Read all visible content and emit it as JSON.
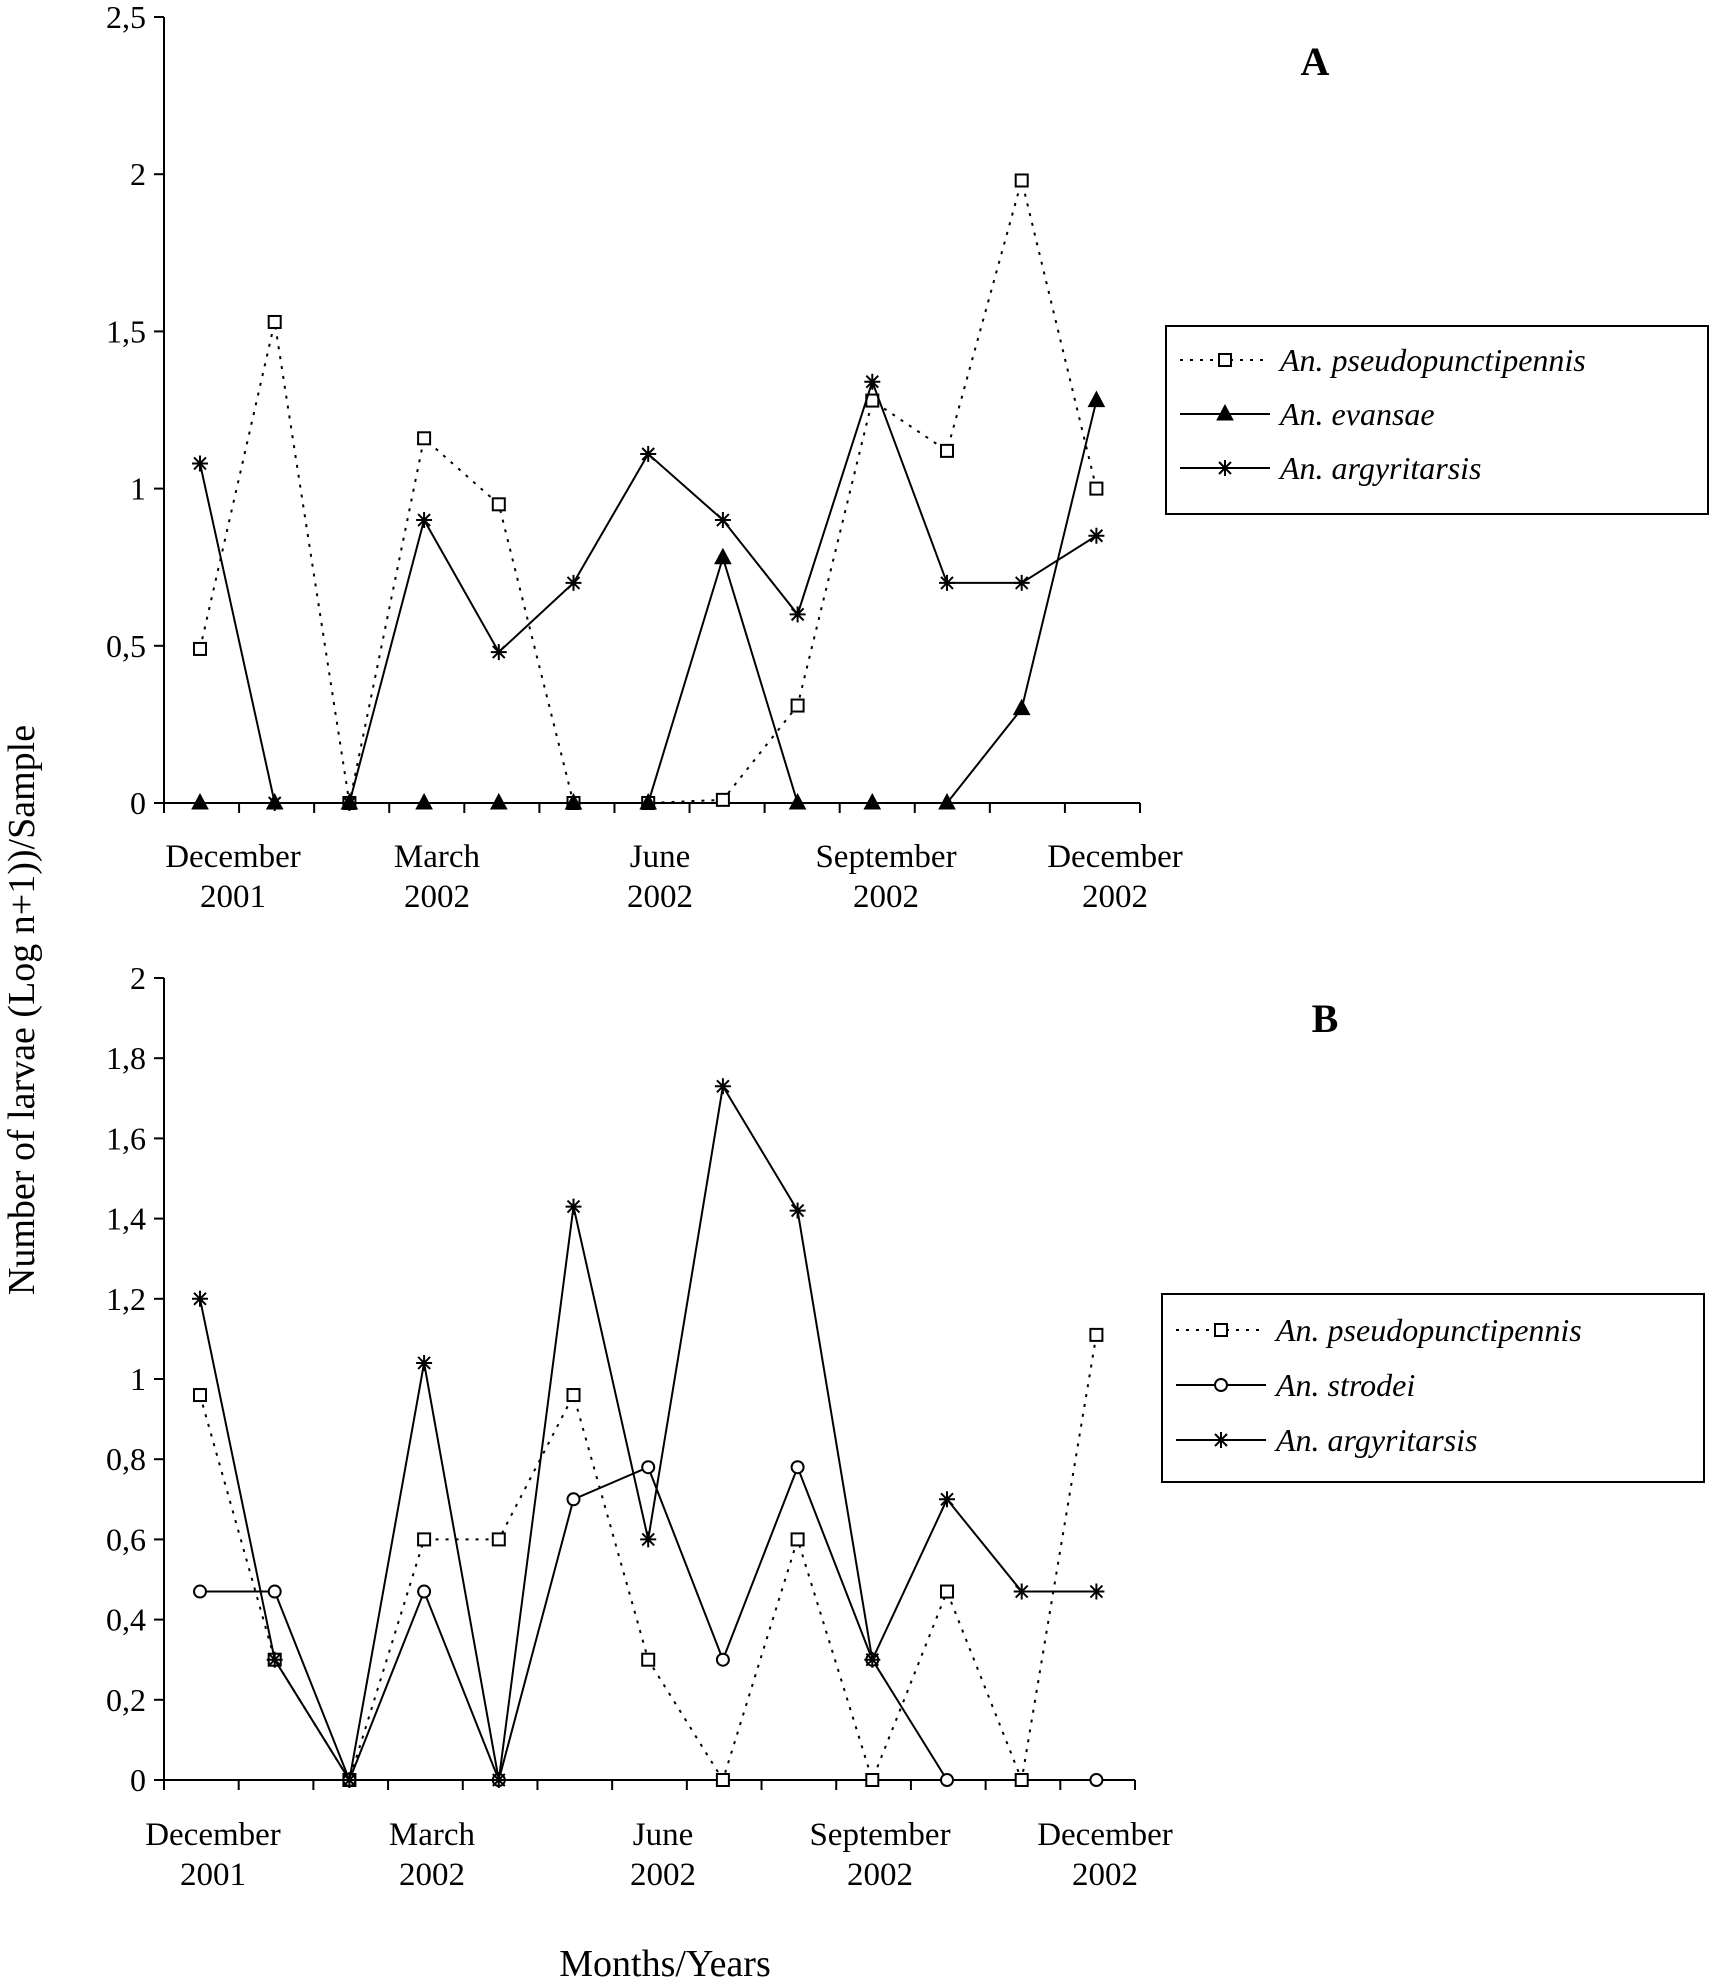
{
  "figure": {
    "ylabel": "Number of larvae  (Log n+1))/Sample",
    "xlabel": "Months/Years"
  },
  "chart_data": [
    {
      "type": "line",
      "panel": "A",
      "ylim": [
        0,
        2.5
      ],
      "yticks": [
        "0",
        "0,5",
        "1",
        "1,5",
        "2",
        "2,5"
      ],
      "ytick_values": [
        0,
        0.5,
        1,
        1.5,
        2,
        2.5
      ],
      "month_labels": [
        {
          "month": "December",
          "year": "2001"
        },
        {
          "month": "March",
          "year": "2002"
        },
        {
          "month": "June",
          "year": "2002"
        },
        {
          "month": "September",
          "year": "2002"
        },
        {
          "month": "December",
          "year": "2002"
        }
      ],
      "x": [
        1,
        2,
        3,
        4,
        5,
        6,
        7,
        8,
        9,
        10,
        11,
        12,
        13
      ],
      "legend_position": "right",
      "series": [
        {
          "name": "An. pseudopunctipennis",
          "style": "dotted",
          "marker": "square",
          "values": [
            0.49,
            1.53,
            0.0,
            1.16,
            0.95,
            0.0,
            0.0,
            0.01,
            0.31,
            1.28,
            1.12,
            1.98,
            1.0
          ]
        },
        {
          "name": "An. evansae",
          "style": "solid",
          "marker": "triangle",
          "values": [
            0.0,
            0.0,
            0.0,
            0.0,
            0.0,
            0.0,
            0.0,
            0.78,
            0.0,
            0.0,
            0.0,
            0.3,
            1.28
          ]
        },
        {
          "name": "An. argyritarsis",
          "style": "solid",
          "marker": "asterisk",
          "values": [
            1.08,
            0.0,
            0.0,
            0.9,
            0.48,
            0.7,
            1.11,
            0.9,
            0.6,
            1.34,
            0.7,
            0.7,
            0.85
          ]
        }
      ]
    },
    {
      "type": "line",
      "panel": "B",
      "ylim": [
        0,
        2
      ],
      "yticks": [
        "0",
        "0,2",
        "0,4",
        "0,6",
        "0,8",
        "1",
        "1,2",
        "1,4",
        "1,6",
        "1,8",
        "2"
      ],
      "ytick_values": [
        0,
        0.2,
        0.4,
        0.6,
        0.8,
        1,
        1.2,
        1.4,
        1.6,
        1.8,
        2
      ],
      "month_labels": [
        {
          "month": "December",
          "year": "2001"
        },
        {
          "month": "March",
          "year": "2002"
        },
        {
          "month": "June",
          "year": "2002"
        },
        {
          "month": "September",
          "year": "2002"
        },
        {
          "month": "December",
          "year": "2002"
        }
      ],
      "x": [
        1,
        2,
        3,
        4,
        5,
        6,
        7,
        8,
        9,
        10,
        11,
        12,
        13
      ],
      "legend_position": "right",
      "series": [
        {
          "name": "An. pseudopunctipennis",
          "style": "dotted",
          "marker": "square",
          "values": [
            0.96,
            0.3,
            0.0,
            0.6,
            0.6,
            0.96,
            0.3,
            0.0,
            0.6,
            0.0,
            0.47,
            0.0,
            1.11
          ]
        },
        {
          "name": "An. strodei",
          "style": "solid",
          "marker": "circle",
          "values": [
            0.47,
            0.47,
            0.0,
            0.47,
            0.0,
            0.7,
            0.78,
            0.3,
            0.78,
            0.3,
            0.0,
            null,
            0.0
          ]
        },
        {
          "name": "An. argyritarsis",
          "style": "solid",
          "marker": "asterisk",
          "values": [
            1.2,
            0.3,
            0.0,
            1.04,
            0.0,
            1.43,
            0.6,
            1.73,
            1.42,
            0.3,
            0.7,
            0.47,
            0.47
          ]
        }
      ]
    }
  ]
}
